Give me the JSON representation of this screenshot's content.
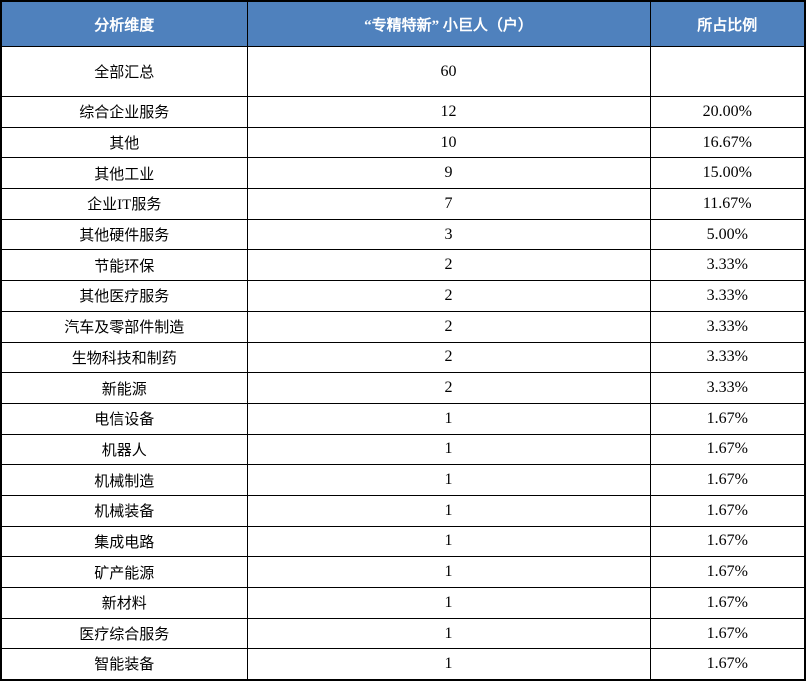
{
  "colors": {
    "header_bg": "#4F81BD",
    "header_text": "#ffffff",
    "border": "#000000"
  },
  "table": {
    "headers": [
      "分析维度",
      "“专精特新” 小巨人（户）",
      "所占比例"
    ],
    "rows": [
      [
        "全部汇总",
        "60",
        ""
      ],
      [
        "综合企业服务",
        "12",
        "20.00%"
      ],
      [
        "其他",
        "10",
        "16.67%"
      ],
      [
        "其他工业",
        "9",
        "15.00%"
      ],
      [
        "企业IT服务",
        "7",
        "11.67%"
      ],
      [
        "其他硬件服务",
        "3",
        "5.00%"
      ],
      [
        "节能环保",
        "2",
        "3.33%"
      ],
      [
        "其他医疗服务",
        "2",
        "3.33%"
      ],
      [
        "汽车及零部件制造",
        "2",
        "3.33%"
      ],
      [
        "生物科技和制药",
        "2",
        "3.33%"
      ],
      [
        "新能源",
        "2",
        "3.33%"
      ],
      [
        "电信设备",
        "1",
        "1.67%"
      ],
      [
        "机器人",
        "1",
        "1.67%"
      ],
      [
        "机械制造",
        "1",
        "1.67%"
      ],
      [
        "机械装备",
        "1",
        "1.67%"
      ],
      [
        "集成电路",
        "1",
        "1.67%"
      ],
      [
        "矿产能源",
        "1",
        "1.67%"
      ],
      [
        "新材料",
        "1",
        "1.67%"
      ],
      [
        "医疗综合服务",
        "1",
        "1.67%"
      ],
      [
        "智能装备",
        "1",
        "1.67%"
      ]
    ]
  },
  "chart_data": {
    "type": "table",
    "title": "",
    "columns": [
      "分析维度",
      "“专精特新” 小巨人（户）",
      "所占比例"
    ],
    "categories": [
      "全部汇总",
      "综合企业服务",
      "其他",
      "其他工业",
      "企业IT服务",
      "其他硬件服务",
      "节能环保",
      "其他医疗服务",
      "汽车及零部件制造",
      "生物科技和制药",
      "新能源",
      "电信设备",
      "机器人",
      "机械制造",
      "机械装备",
      "集成电路",
      "矿产能源",
      "新材料",
      "医疗综合服务",
      "智能装备"
    ],
    "series": [
      {
        "name": "“专精特新” 小巨人（户）",
        "values": [
          60,
          12,
          10,
          9,
          7,
          3,
          2,
          2,
          2,
          2,
          2,
          1,
          1,
          1,
          1,
          1,
          1,
          1,
          1,
          1
        ]
      },
      {
        "name": "所占比例",
        "values": [
          null,
          "20.00%",
          "16.67%",
          "15.00%",
          "11.67%",
          "5.00%",
          "3.33%",
          "3.33%",
          "3.33%",
          "3.33%",
          "3.33%",
          "1.67%",
          "1.67%",
          "1.67%",
          "1.67%",
          "1.67%",
          "1.67%",
          "1.67%",
          "1.67%",
          "1.67%"
        ]
      }
    ]
  }
}
